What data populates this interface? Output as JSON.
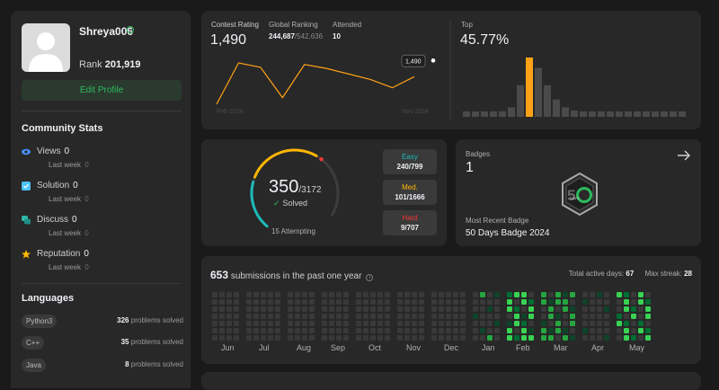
{
  "profile": {
    "username": "Shreya006",
    "rank_label": "Rank",
    "rank_value": "201,919",
    "edit_label": "Edit Profile"
  },
  "community": {
    "heading": "Community Stats",
    "items": [
      {
        "label": "Views",
        "value": "0",
        "sub": "Last week",
        "sub_value": "0",
        "color": "#4592ff",
        "icon": "eye-icon"
      },
      {
        "label": "Solution",
        "value": "0",
        "sub": "Last week",
        "sub_value": "0",
        "color": "#4cc2ff",
        "icon": "check-square-icon"
      },
      {
        "label": "Discuss",
        "value": "0",
        "sub": "Last week",
        "sub_value": "0",
        "color": "#2cbbad",
        "icon": "chat-icon"
      },
      {
        "label": "Reputation",
        "value": "0",
        "sub": "Last week",
        "sub_value": "0",
        "color": "#ffb800",
        "icon": "star-icon"
      }
    ]
  },
  "languages": {
    "heading": "Languages",
    "items": [
      {
        "name": "Python3",
        "count": "326",
        "suffix": "problems solved"
      },
      {
        "name": "C++",
        "count": "35",
        "suffix": "problems solved"
      },
      {
        "name": "Java",
        "count": "8",
        "suffix": "problems solved"
      }
    ]
  },
  "contest": {
    "rating_label": "Contest Rating",
    "rating_value": "1,490",
    "ranking_label": "Global Ranking",
    "ranking_value": "244,687",
    "ranking_total": "/542,636",
    "attended_label": "Attended",
    "attended_value": "10",
    "tooltip": "1,490",
    "start_label": "Feb 2024",
    "end_label": "Nov 2024",
    "top_label": "Top",
    "top_value": "45.77%",
    "line_color": "#ffa116",
    "rating_points": [
      1440,
      1515,
      1507,
      1452,
      1512,
      1505,
      1495,
      1485,
      1470,
      1490
    ],
    "histogram": [
      2,
      2,
      3,
      5,
      7,
      12,
      40,
      75,
      62,
      40,
      22,
      12,
      8,
      5,
      4,
      3,
      2,
      2,
      2,
      2,
      2,
      2,
      2,
      2,
      2
    ],
    "highlight_index": 7
  },
  "progress": {
    "solved": "350",
    "total": "/3172",
    "solved_label": "Solved",
    "attempting": "15 Attempting",
    "solved_fraction": 0.11,
    "easy": {
      "label": "Easy",
      "value": "240/799",
      "color": "#1cbaba"
    },
    "medium": {
      "label": "Med.",
      "value": "101/1666",
      "color": "#ffb700"
    },
    "hard": {
      "label": "Hard",
      "value": "9/707",
      "color": "#f63737"
    }
  },
  "badges": {
    "label": "Badges",
    "count": "1",
    "recent_label": "Most Recent Badge",
    "recent_name": "50 Days Badge 2024",
    "badge_text": "DAYS"
  },
  "submissions": {
    "count": "653",
    "text": "submissions in the past one year",
    "active_label": "Total active days:",
    "active_value": "67",
    "streak_label": "Max streak:",
    "streak_value": "28",
    "months": [
      "Jun",
      "Jul",
      "Aug",
      "Sep",
      "Oct",
      "Nov",
      "Dec",
      "Jan",
      "Feb",
      "Mar",
      "Apr",
      "May"
    ],
    "colors": {
      "empty": "#393939",
      "l1": "#0e4429",
      "l2": "#006d32",
      "l3": "#26a641",
      "l4": "#39d353"
    }
  }
}
